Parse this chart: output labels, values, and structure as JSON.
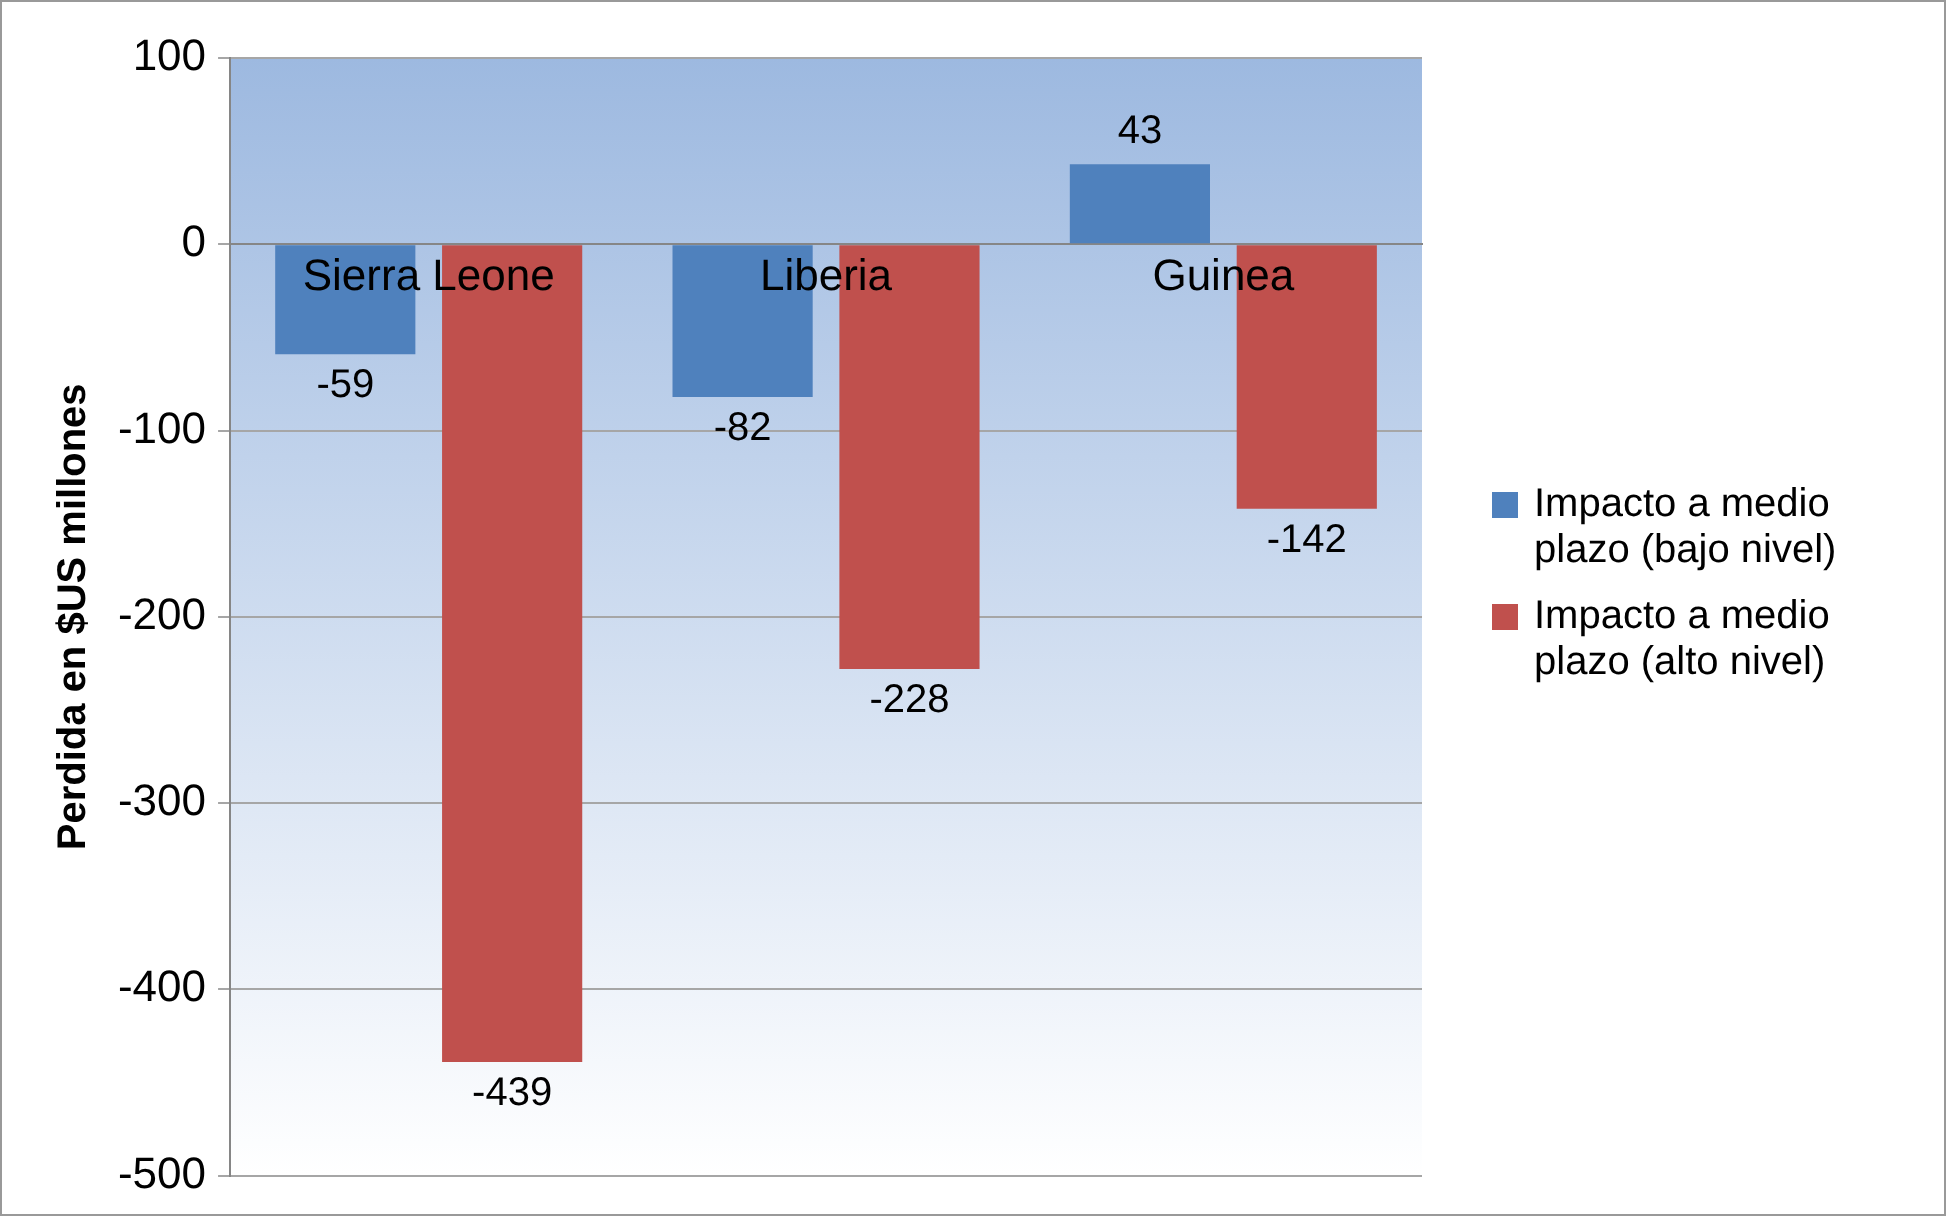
{
  "chart_data": {
    "type": "bar",
    "ylabel": "Perdida en $US millones",
    "categories": [
      "Sierra Leone",
      "Liberia",
      "Guinea"
    ],
    "series": [
      {
        "name": "Impacto a medio plazo (bajo nivel)",
        "color": "#4f81bd",
        "values": [
          -59,
          -82,
          43
        ]
      },
      {
        "name": "Impacto a medio plazo (alto nivel)",
        "color": "#c0504d",
        "values": [
          -439,
          -228,
          -142
        ]
      }
    ],
    "ylim": [
      -500,
      100
    ],
    "yticks": [
      -500,
      -400,
      -300,
      -200,
      -100,
      0,
      100
    ],
    "grid": "y",
    "legend": "right",
    "data_labels": true
  }
}
